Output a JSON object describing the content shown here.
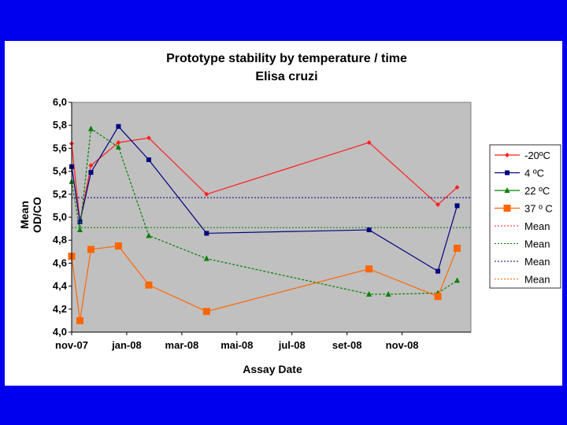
{
  "colors": {
    "background": "#0000ee",
    "plot_area": "#c0c0c0",
    "series": [
      "#ff2020",
      "#000080",
      "#008000",
      "#ff6600"
    ],
    "mean_lines": [
      "#ff2020",
      "#008000",
      "#000080",
      "#ff6600"
    ]
  },
  "chart_data": {
    "type": "line",
    "title": "Prototype stability by temperature / time",
    "subtitle": "Elisa cruzi",
    "xlabel": "Assay  Date",
    "ylabel_line1": "Mean",
    "ylabel_line2": "OD/CO",
    "x_axis": {
      "min_month": 0.0,
      "max_month": 14.5,
      "ticks": [
        {
          "label": "nov-07",
          "month": 0
        },
        {
          "label": "jan-08",
          "month": 2
        },
        {
          "label": "mar-08",
          "month": 4
        },
        {
          "label": "mai-08",
          "month": 6
        },
        {
          "label": "jul-08",
          "month": 8
        },
        {
          "label": "set-08",
          "month": 10
        },
        {
          "label": "nov-08",
          "month": 12
        }
      ]
    },
    "y_axis": {
      "min": 4.0,
      "max": 6.0,
      "step": 0.2,
      "tick_labels": [
        "4,0",
        "4,2",
        "4,4",
        "4,6",
        "4,8",
        "5,0",
        "5,2",
        "5,4",
        "5,6",
        "5,8",
        "6,0"
      ]
    },
    "series": [
      {
        "name": "-20ºC",
        "marker": "diamond",
        "style": "solid",
        "points": [
          [
            0.0,
            5.64
          ],
          [
            0.3,
            4.96
          ],
          [
            0.7,
            5.45
          ],
          [
            1.7,
            5.65
          ],
          [
            2.8,
            5.69
          ],
          [
            4.9,
            5.2
          ],
          [
            10.8,
            5.65
          ],
          [
            13.3,
            5.11
          ],
          [
            14.0,
            5.26
          ]
        ]
      },
      {
        "name": "4 ºC",
        "marker": "square",
        "style": "solid",
        "points": [
          [
            0.0,
            5.44
          ],
          [
            0.3,
            4.96
          ],
          [
            0.7,
            5.39
          ],
          [
            1.7,
            5.79
          ],
          [
            2.8,
            5.5
          ],
          [
            4.9,
            4.86
          ],
          [
            10.8,
            4.89
          ],
          [
            13.3,
            4.53
          ],
          [
            14.0,
            5.1
          ]
        ]
      },
      {
        "name": "22 ºC",
        "marker": "triangle",
        "style": "dashed",
        "points": [
          [
            0.0,
            5.31
          ],
          [
            0.3,
            4.89
          ],
          [
            0.7,
            5.77
          ],
          [
            1.7,
            5.61
          ],
          [
            2.8,
            4.84
          ],
          [
            4.9,
            4.64
          ],
          [
            10.8,
            4.33
          ],
          [
            11.5,
            4.33
          ],
          [
            13.3,
            4.34
          ],
          [
            14.0,
            4.45
          ]
        ]
      },
      {
        "name": "37 º C",
        "marker": "bigsquare",
        "style": "solid",
        "points": [
          [
            0.0,
            4.66
          ],
          [
            0.3,
            4.1
          ],
          [
            0.7,
            4.72
          ],
          [
            1.7,
            4.75
          ],
          [
            2.8,
            4.41
          ],
          [
            4.9,
            4.18
          ],
          [
            10.8,
            4.55
          ],
          [
            13.3,
            4.31
          ],
          [
            14.0,
            4.73
          ]
        ]
      }
    ],
    "mean_lines": [
      {
        "name": "Mean",
        "value": 5.17,
        "color_index": 2
      },
      {
        "name": "Mean",
        "value": 4.91,
        "color_index": 1
      }
    ],
    "legend": [
      {
        "label": "-20ºC",
        "kind": "series",
        "index": 0
      },
      {
        "label": "4 ºC",
        "kind": "series",
        "index": 1
      },
      {
        "label": "22 ºC",
        "kind": "series",
        "index": 2
      },
      {
        "label": "37 º C",
        "kind": "series",
        "index": 3
      },
      {
        "label": "Mean",
        "kind": "mean",
        "index": 0
      },
      {
        "label": "Mean",
        "kind": "mean",
        "index": 1
      },
      {
        "label": "Mean",
        "kind": "mean",
        "index": 2
      },
      {
        "label": "Mean",
        "kind": "mean",
        "index": 3
      }
    ],
    "legend_position": "right"
  }
}
